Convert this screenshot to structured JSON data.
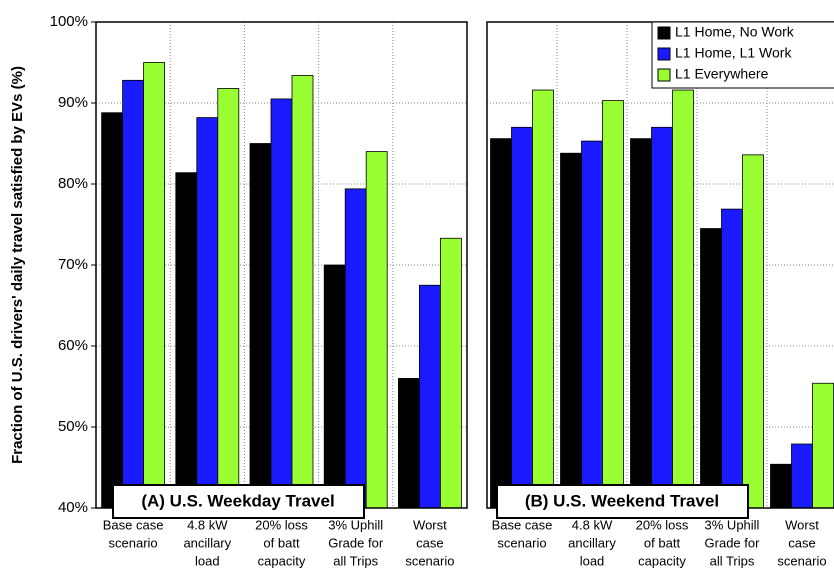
{
  "chart_data": [
    {
      "type": "bar",
      "ylabel": "Fraction of U.S. drivers' daily travel satisfied by EVs (%)",
      "annotation": "(A) U.S. Weekday Travel",
      "categories": [
        [
          "Base case",
          "scenario"
        ],
        [
          "4.8 kW",
          "ancillary",
          "load"
        ],
        [
          "20% loss",
          "of batt",
          "capacity"
        ],
        [
          "3% Uphill",
          "Grade for",
          "all Trips"
        ],
        [
          "Worst",
          "case",
          "scenario"
        ]
      ],
      "series": [
        {
          "color": "#000000",
          "values": [
            88.8,
            81.4,
            85.0,
            70.0,
            56.0
          ]
        },
        {
          "color": "#1a1aff",
          "values": [
            92.8,
            88.2,
            90.5,
            79.4,
            67.5
          ]
        },
        {
          "color": "#99ff33",
          "values": [
            95.0,
            91.8,
            93.4,
            84.0,
            73.3
          ]
        }
      ],
      "ylim": [
        40,
        100
      ],
      "yticks": [
        {
          "value": 40,
          "label": "40%"
        },
        {
          "value": 50,
          "label": "50%"
        },
        {
          "value": 60,
          "label": "60%"
        },
        {
          "value": 70,
          "label": "70%"
        },
        {
          "value": 80,
          "label": "80%"
        },
        {
          "value": 90,
          "label": "90%"
        },
        {
          "value": 100,
          "label": "100%"
        }
      ],
      "grid": true
    },
    {
      "type": "bar",
      "annotation": "(B) U.S. Weekend Travel",
      "categories": [
        [
          "Base case",
          "scenario"
        ],
        [
          "4.8 kW",
          "ancillary",
          "load"
        ],
        [
          "20% loss",
          "of batt",
          "capacity"
        ],
        [
          "3% Uphill",
          "Grade for",
          "all Trips"
        ],
        [
          "Worst",
          "case",
          "scenario"
        ]
      ],
      "series": [
        {
          "name": "L1 Home, No Work",
          "color": "#000000",
          "values": [
            85.6,
            83.8,
            85.6,
            74.5,
            45.4
          ]
        },
        {
          "name": "L1 Home, L1 Work",
          "color": "#1a1aff",
          "values": [
            87.0,
            85.3,
            87.0,
            76.9,
            47.9
          ]
        },
        {
          "name": "L1 Everywhere",
          "color": "#99ff33",
          "values": [
            91.6,
            90.3,
            91.6,
            83.6,
            55.4
          ]
        }
      ],
      "ylim": [
        40,
        100
      ],
      "yticks": [
        40,
        50,
        60,
        70,
        80,
        90,
        100
      ],
      "grid": true,
      "legend": "upper right"
    }
  ]
}
